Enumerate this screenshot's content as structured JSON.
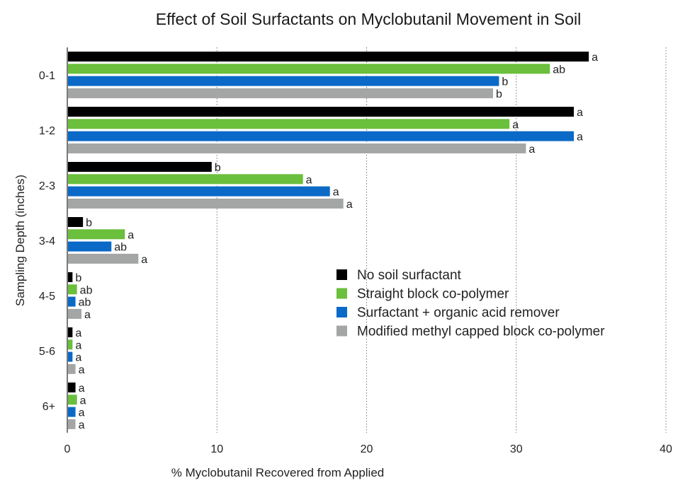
{
  "chart_data": {
    "type": "bar",
    "orientation": "horizontal",
    "title": "Effect of Soil Surfactants on Myclobutanil Movement in Soil",
    "xlabel": "% Myclobutanil Recovered from Applied",
    "ylabel": "Sampling Depth (inches)",
    "xlim": [
      0,
      40
    ],
    "xticks": [
      "0",
      "10",
      "20",
      "30",
      "40"
    ],
    "grid": "vertical dotted",
    "legend_position": "right",
    "categories": [
      "0-1",
      "1-2",
      "2-3",
      "3-4",
      "4-5",
      "5-6",
      "6+"
    ],
    "series": [
      {
        "name": "No soil surfactant",
        "color": "#000000",
        "values": [
          34.8,
          33.8,
          9.6,
          1.0,
          0.3,
          0.3,
          0.5
        ],
        "labels": [
          "a",
          "a",
          "b",
          "b",
          "b",
          "a",
          "a"
        ]
      },
      {
        "name": "Straight block co-polymer",
        "color": "#6abf3c",
        "values": [
          32.2,
          29.5,
          15.7,
          3.8,
          0.6,
          0.3,
          0.6
        ],
        "labels": [
          "ab",
          "a",
          "a",
          "a",
          "ab",
          "a",
          "a"
        ]
      },
      {
        "name": "Surfactant + organic acid remover",
        "color": "#0b69c7",
        "values": [
          28.8,
          33.8,
          17.5,
          2.9,
          0.5,
          0.3,
          0.5
        ],
        "labels": [
          "b",
          "a",
          "a",
          "ab",
          "ab",
          "a",
          "a"
        ]
      },
      {
        "name": "Modified methyl capped block co-polymer",
        "color": "#a4a6a6",
        "values": [
          28.4,
          30.6,
          18.4,
          4.7,
          0.9,
          0.5,
          0.5
        ],
        "labels": [
          "b",
          "a",
          "a",
          "a",
          "a",
          "a",
          "a"
        ]
      }
    ]
  }
}
